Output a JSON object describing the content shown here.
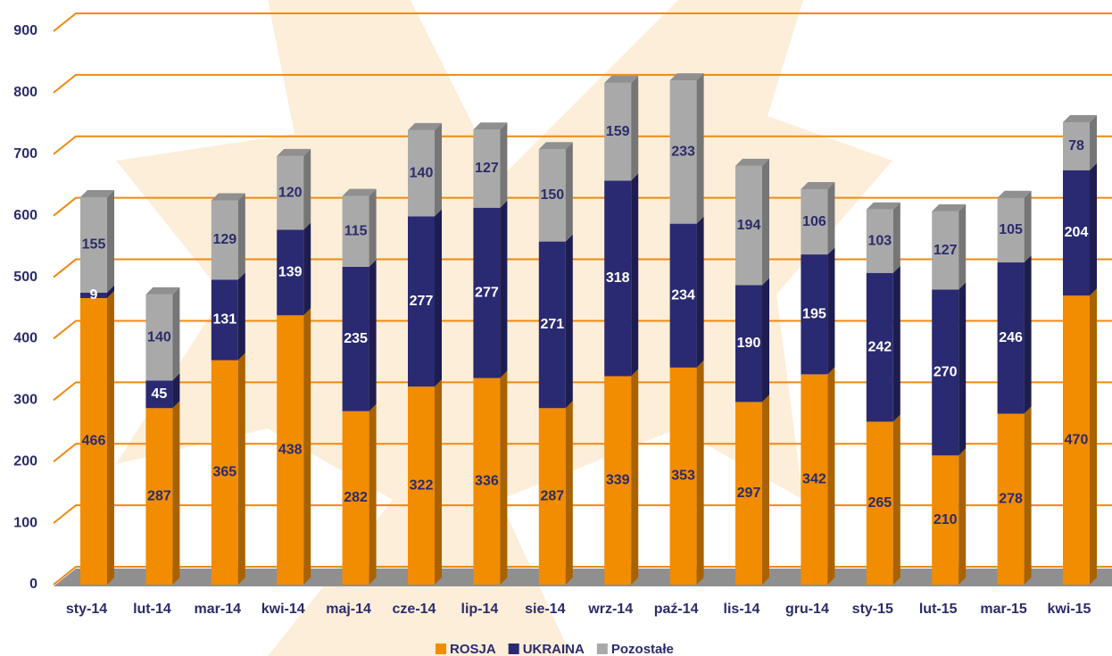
{
  "chart_data": {
    "type": "bar",
    "stacked": true,
    "categories": [
      "sty-14",
      "lut-14",
      "mar-14",
      "kwi-14",
      "maj-14",
      "cze-14",
      "lip-14",
      "sie-14",
      "wrz-14",
      "paź-14",
      "lis-14",
      "gru-14",
      "sty-15",
      "lut-15",
      "mar-15",
      "kwi-15"
    ],
    "series": [
      {
        "name": "ROSJA",
        "color": "#f28c00",
        "label_color": "#2b2b6b",
        "values": [
          466,
          287,
          365,
          438,
          282,
          322,
          336,
          287,
          339,
          353,
          297,
          342,
          265,
          210,
          278,
          470
        ]
      },
      {
        "name": "UKRAINA",
        "color": "#2a2a72",
        "label_color": "#ffffff",
        "values": [
          9,
          45,
          131,
          139,
          235,
          277,
          277,
          271,
          318,
          234,
          190,
          195,
          242,
          270,
          246,
          204
        ]
      },
      {
        "name": "Pozostałe",
        "color": "#a9a9a9",
        "label_color": "#2b2b6b",
        "values": [
          155,
          140,
          129,
          120,
          115,
          140,
          127,
          150,
          159,
          233,
          194,
          106,
          103,
          127,
          105,
          78
        ]
      }
    ],
    "ylim": [
      0,
      900
    ],
    "yticks": [
      0,
      100,
      200,
      300,
      400,
      500,
      600,
      700,
      800,
      900
    ],
    "grid": true,
    "legend": "bottom"
  }
}
